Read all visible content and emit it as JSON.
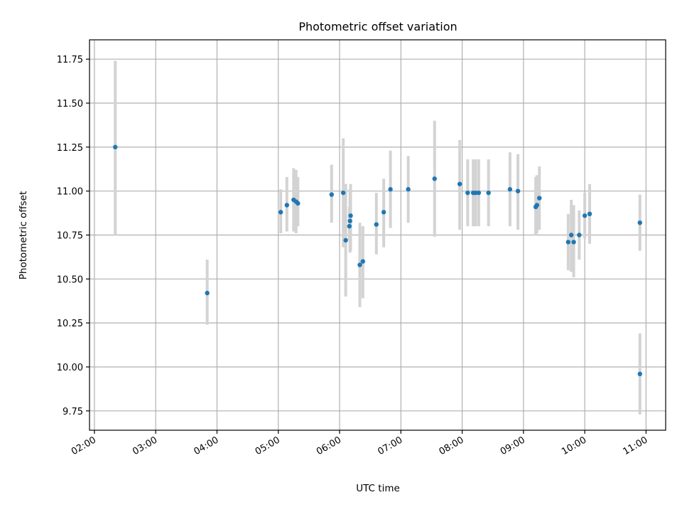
{
  "chart_data": {
    "type": "scatter",
    "title": "Photometric offset variation",
    "xlabel": "UTC time",
    "ylabel": "Photometric offset",
    "xlim_hours": [
      1.92,
      11.32
    ],
    "ylim": [
      9.64,
      11.86
    ],
    "grid": true,
    "x_ticks": [
      {
        "hour": 2,
        "label": "02:00"
      },
      {
        "hour": 3,
        "label": "03:00"
      },
      {
        "hour": 4,
        "label": "04:00"
      },
      {
        "hour": 5,
        "label": "05:00"
      },
      {
        "hour": 6,
        "label": "06:00"
      },
      {
        "hour": 7,
        "label": "07:00"
      },
      {
        "hour": 8,
        "label": "08:00"
      },
      {
        "hour": 9,
        "label": "09:00"
      },
      {
        "hour": 10,
        "label": "10:00"
      },
      {
        "hour": 11,
        "label": "11:00"
      }
    ],
    "y_ticks": [
      {
        "value": 9.75,
        "label": "9.75"
      },
      {
        "value": 10.0,
        "label": "10.00"
      },
      {
        "value": 10.25,
        "label": "10.25"
      },
      {
        "value": 10.5,
        "label": "10.50"
      },
      {
        "value": 10.75,
        "label": "10.75"
      },
      {
        "value": 11.0,
        "label": "11.00"
      },
      {
        "value": 11.25,
        "label": "11.25"
      },
      {
        "value": 11.5,
        "label": "11.50"
      },
      {
        "value": 11.75,
        "label": "11.75"
      }
    ],
    "marker_color": "#1f77b4",
    "errorbar_color": "#d3d3d3",
    "grid_color": "#b0b0b0",
    "points": [
      {
        "t": 2.34,
        "y": 11.25,
        "lo": 10.75,
        "hi": 11.74
      },
      {
        "t": 3.84,
        "y": 10.42,
        "lo": 10.24,
        "hi": 10.61
      },
      {
        "t": 5.04,
        "y": 10.88,
        "lo": 10.76,
        "hi": 11.01
      },
      {
        "t": 5.14,
        "y": 10.92,
        "lo": 10.77,
        "hi": 11.08
      },
      {
        "t": 5.25,
        "y": 10.95,
        "lo": 10.77,
        "hi": 11.13
      },
      {
        "t": 5.29,
        "y": 10.94,
        "lo": 10.76,
        "hi": 11.12
      },
      {
        "t": 5.32,
        "y": 10.93,
        "lo": 10.8,
        "hi": 11.08
      },
      {
        "t": 5.87,
        "y": 10.98,
        "lo": 10.82,
        "hi": 11.15
      },
      {
        "t": 6.06,
        "y": 10.99,
        "lo": 10.68,
        "hi": 11.3
      },
      {
        "t": 6.1,
        "y": 10.72,
        "lo": 10.4,
        "hi": 11.04
      },
      {
        "t": 6.16,
        "y": 10.8,
        "lo": 10.72,
        "hi": 10.91
      },
      {
        "t": 6.17,
        "y": 10.83,
        "lo": 10.65,
        "hi": 11.01
      },
      {
        "t": 6.18,
        "y": 10.86,
        "lo": 10.66,
        "hi": 11.04
      },
      {
        "t": 6.33,
        "y": 10.58,
        "lo": 10.34,
        "hi": 10.82
      },
      {
        "t": 6.38,
        "y": 10.6,
        "lo": 10.39,
        "hi": 10.8
      },
      {
        "t": 6.6,
        "y": 10.81,
        "lo": 10.64,
        "hi": 10.99
      },
      {
        "t": 6.72,
        "y": 10.88,
        "lo": 10.68,
        "hi": 11.07
      },
      {
        "t": 6.83,
        "y": 11.01,
        "lo": 10.79,
        "hi": 11.23
      },
      {
        "t": 7.12,
        "y": 11.01,
        "lo": 10.82,
        "hi": 11.2
      },
      {
        "t": 7.55,
        "y": 11.07,
        "lo": 10.74,
        "hi": 11.4
      },
      {
        "t": 7.96,
        "y": 11.04,
        "lo": 10.78,
        "hi": 11.29
      },
      {
        "t": 8.09,
        "y": 10.99,
        "lo": 10.8,
        "hi": 11.18
      },
      {
        "t": 8.18,
        "y": 10.99,
        "lo": 10.8,
        "hi": 11.18
      },
      {
        "t": 8.22,
        "y": 10.99,
        "lo": 10.8,
        "hi": 11.18
      },
      {
        "t": 8.27,
        "y": 10.99,
        "lo": 10.8,
        "hi": 11.18
      },
      {
        "t": 8.43,
        "y": 10.99,
        "lo": 10.8,
        "hi": 11.18
      },
      {
        "t": 8.78,
        "y": 11.01,
        "lo": 10.8,
        "hi": 11.22
      },
      {
        "t": 8.91,
        "y": 11.0,
        "lo": 10.78,
        "hi": 11.21
      },
      {
        "t": 9.2,
        "y": 10.91,
        "lo": 10.75,
        "hi": 11.08
      },
      {
        "t": 9.22,
        "y": 10.92,
        "lo": 10.76,
        "hi": 11.09
      },
      {
        "t": 9.26,
        "y": 10.96,
        "lo": 10.78,
        "hi": 11.14
      },
      {
        "t": 9.73,
        "y": 10.71,
        "lo": 10.55,
        "hi": 10.87
      },
      {
        "t": 9.78,
        "y": 10.75,
        "lo": 10.54,
        "hi": 10.95
      },
      {
        "t": 9.82,
        "y": 10.71,
        "lo": 10.51,
        "hi": 10.92
      },
      {
        "t": 9.91,
        "y": 10.75,
        "lo": 10.61,
        "hi": 10.89
      },
      {
        "t": 10.0,
        "y": 10.86,
        "lo": 10.73,
        "hi": 10.99
      },
      {
        "t": 10.08,
        "y": 10.87,
        "lo": 10.7,
        "hi": 11.04
      },
      {
        "t": 10.9,
        "y": 10.82,
        "lo": 10.66,
        "hi": 10.98
      },
      {
        "t": 10.9,
        "y": 9.96,
        "lo": 9.73,
        "hi": 10.19
      }
    ]
  }
}
